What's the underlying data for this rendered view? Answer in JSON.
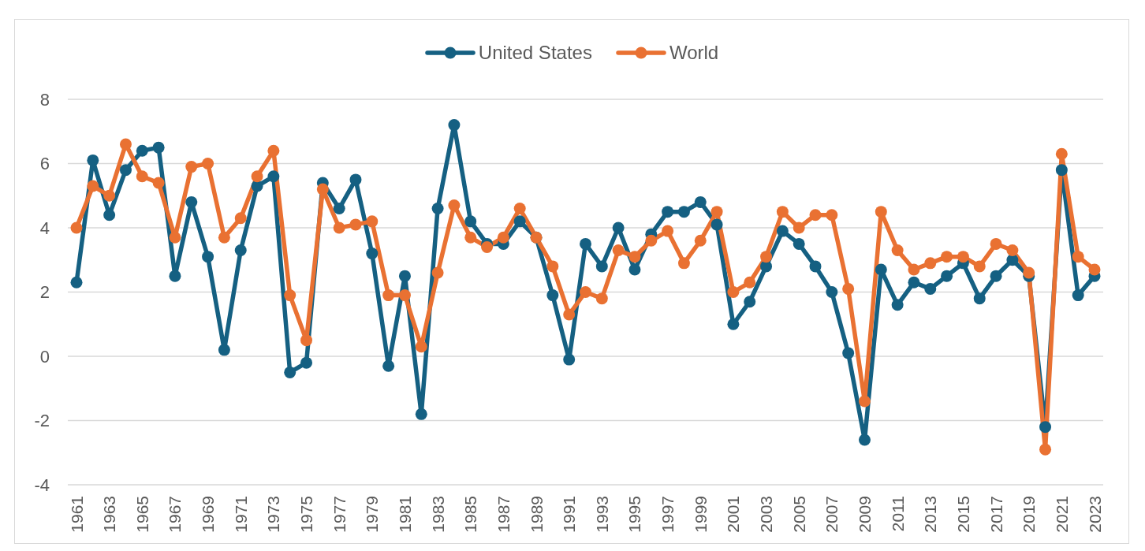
{
  "chart_data": {
    "type": "line",
    "categories": [
      "1961",
      null,
      "1963",
      null,
      "1965",
      null,
      "1967",
      null,
      "1969",
      null,
      "1971",
      null,
      "1973",
      null,
      "1975",
      null,
      "1977",
      null,
      "1979",
      null,
      "1981",
      null,
      "1983",
      null,
      "1985",
      null,
      "1987",
      null,
      "1989",
      null,
      "1991",
      null,
      "1993",
      null,
      "1995",
      null,
      "1997",
      null,
      "1999",
      null,
      "2001",
      null,
      "2003",
      null,
      "2005",
      null,
      "2007",
      null,
      "2009",
      null,
      "2011",
      null,
      "2013",
      null,
      "2015",
      null,
      "2017",
      null,
      "2019",
      null,
      "2021",
      null,
      "2023"
    ],
    "series": [
      {
        "name": "United States",
        "color": "#156082",
        "values": [
          2.3,
          6.1,
          4.4,
          5.8,
          6.4,
          6.5,
          2.5,
          4.8,
          3.1,
          0.2,
          3.3,
          5.3,
          5.6,
          -0.5,
          -0.2,
          5.4,
          4.6,
          5.5,
          3.2,
          -0.3,
          2.5,
          -1.8,
          4.6,
          7.2,
          4.2,
          3.5,
          3.5,
          4.2,
          3.7,
          1.9,
          -0.1,
          3.5,
          2.8,
          4.0,
          2.7,
          3.8,
          4.5,
          4.5,
          4.8,
          4.1,
          1.0,
          1.7,
          2.8,
          3.9,
          3.5,
          2.8,
          2.0,
          0.1,
          -2.6,
          2.7,
          1.6,
          2.3,
          2.1,
          2.5,
          2.9,
          1.8,
          2.5,
          3.0,
          2.5,
          -2.2,
          5.8,
          1.9,
          2.5
        ]
      },
      {
        "name": "World",
        "color": "#e97132",
        "values": [
          4.0,
          5.3,
          5.0,
          6.6,
          5.6,
          5.4,
          3.7,
          5.9,
          6.0,
          3.7,
          4.3,
          5.6,
          6.4,
          1.9,
          0.5,
          5.2,
          4.0,
          4.1,
          4.2,
          1.9,
          1.9,
          0.3,
          2.6,
          4.7,
          3.7,
          3.4,
          3.7,
          4.6,
          3.7,
          2.8,
          1.3,
          2.0,
          1.8,
          3.3,
          3.1,
          3.6,
          3.9,
          2.9,
          3.6,
          4.5,
          2.0,
          2.3,
          3.1,
          4.5,
          4.0,
          4.4,
          4.4,
          2.1,
          -1.4,
          4.5,
          3.3,
          2.7,
          2.9,
          3.1,
          3.1,
          2.8,
          3.5,
          3.3,
          2.6,
          -2.9,
          6.3,
          3.1,
          2.7
        ]
      }
    ],
    "ylim": [
      -4,
      8
    ],
    "yticks": [
      -4,
      -2,
      0,
      2,
      4,
      6,
      8
    ],
    "grid": "y",
    "legend": "top",
    "marker": "circle"
  }
}
